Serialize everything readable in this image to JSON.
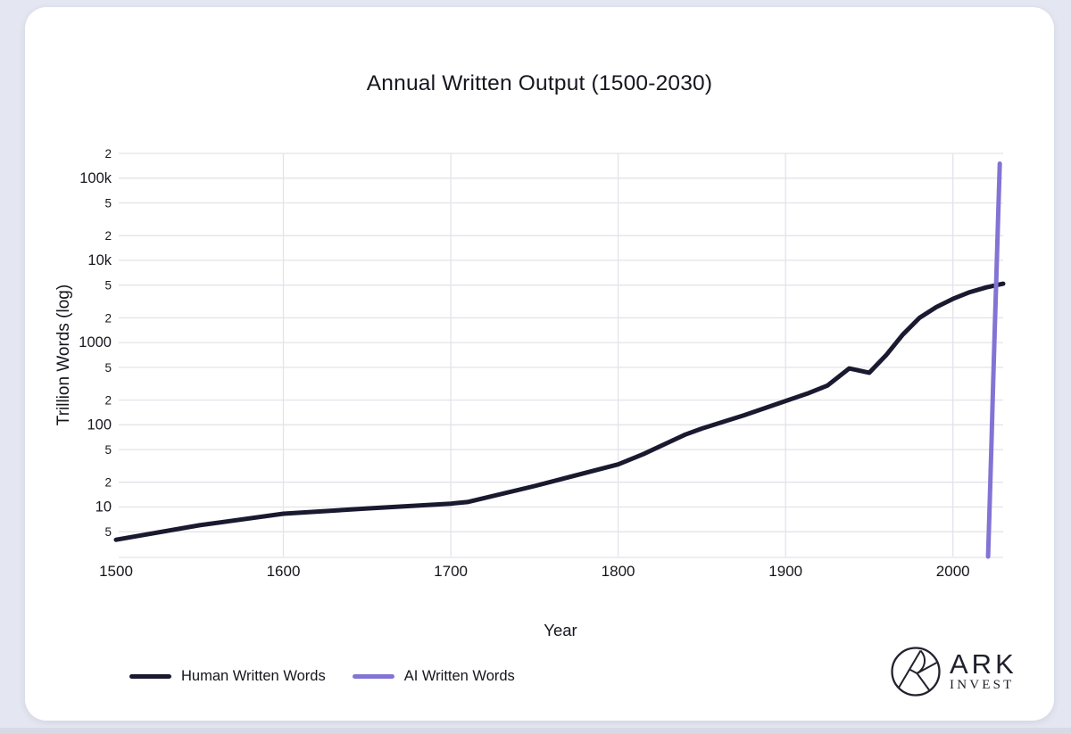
{
  "page": {
    "background": "#e4e7f1",
    "card_background": "#ffffff",
    "bottom_strip": "#d7dae6"
  },
  "title": "Annual Written Output (1500-2030)",
  "x_axis": {
    "label": "Year",
    "ticks": [
      1500,
      1600,
      1700,
      1800,
      1900,
      2000
    ]
  },
  "y_axis": {
    "label": "Trillion Words (log)",
    "ticks": [
      {
        "value": 5,
        "label": "5",
        "major": false
      },
      {
        "value": 10,
        "label": "10",
        "major": true
      },
      {
        "value": 20,
        "label": "2",
        "major": false
      },
      {
        "value": 50,
        "label": "5",
        "major": false
      },
      {
        "value": 100,
        "label": "100",
        "major": true
      },
      {
        "value": 200,
        "label": "2",
        "major": false
      },
      {
        "value": 500,
        "label": "5",
        "major": false
      },
      {
        "value": 1000,
        "label": "1000",
        "major": true
      },
      {
        "value": 2000,
        "label": "2",
        "major": false
      },
      {
        "value": 5000,
        "label": "5",
        "major": false
      },
      {
        "value": 10000,
        "label": "10k",
        "major": true
      },
      {
        "value": 20000,
        "label": "2",
        "major": false
      },
      {
        "value": 50000,
        "label": "5",
        "major": false
      },
      {
        "value": 100000,
        "label": "100k",
        "major": true
      },
      {
        "value": 200000,
        "label": "2",
        "major": false
      }
    ]
  },
  "legend": {
    "items": [
      {
        "label": "Human Written Words",
        "color": "#191930"
      },
      {
        "label": "AI Written Words",
        "color": "#8274d4"
      }
    ]
  },
  "branding": {
    "name": "ARK",
    "subname": "INVEST"
  },
  "chart_data": {
    "type": "line",
    "title": "Annual Written Output (1500-2030)",
    "xlabel": "Year",
    "ylabel": "Trillion Words (log)",
    "x_range": [
      1500,
      2030
    ],
    "y_range_log": [
      2.5,
      200000
    ],
    "y_scale": "log",
    "grid": true,
    "legend_position": "bottom",
    "grid_color": "#e3e3ea",
    "series": [
      {
        "name": "Human Written Words",
        "color": "#191930",
        "points": [
          [
            1500,
            4
          ],
          [
            1550,
            6
          ],
          [
            1600,
            8.3
          ],
          [
            1650,
            9.6
          ],
          [
            1700,
            11
          ],
          [
            1710,
            11.5
          ],
          [
            1750,
            18
          ],
          [
            1800,
            33
          ],
          [
            1815,
            44
          ],
          [
            1840,
            76
          ],
          [
            1850,
            90
          ],
          [
            1875,
            130
          ],
          [
            1900,
            195
          ],
          [
            1913,
            240
          ],
          [
            1925,
            300
          ],
          [
            1938,
            485
          ],
          [
            1950,
            430
          ],
          [
            1960,
            700
          ],
          [
            1970,
            1250
          ],
          [
            1980,
            2000
          ],
          [
            1990,
            2700
          ],
          [
            2000,
            3400
          ],
          [
            2010,
            4100
          ],
          [
            2020,
            4700
          ],
          [
            2030,
            5200
          ]
        ]
      },
      {
        "name": "AI Written Words",
        "color": "#8274d4",
        "points": [
          [
            2021,
            2.5
          ],
          [
            2022,
            12
          ],
          [
            2023,
            60
          ],
          [
            2024,
            300
          ],
          [
            2025,
            1500
          ],
          [
            2026,
            7000
          ],
          [
            2027,
            35000
          ],
          [
            2028,
            150000
          ]
        ]
      }
    ]
  }
}
